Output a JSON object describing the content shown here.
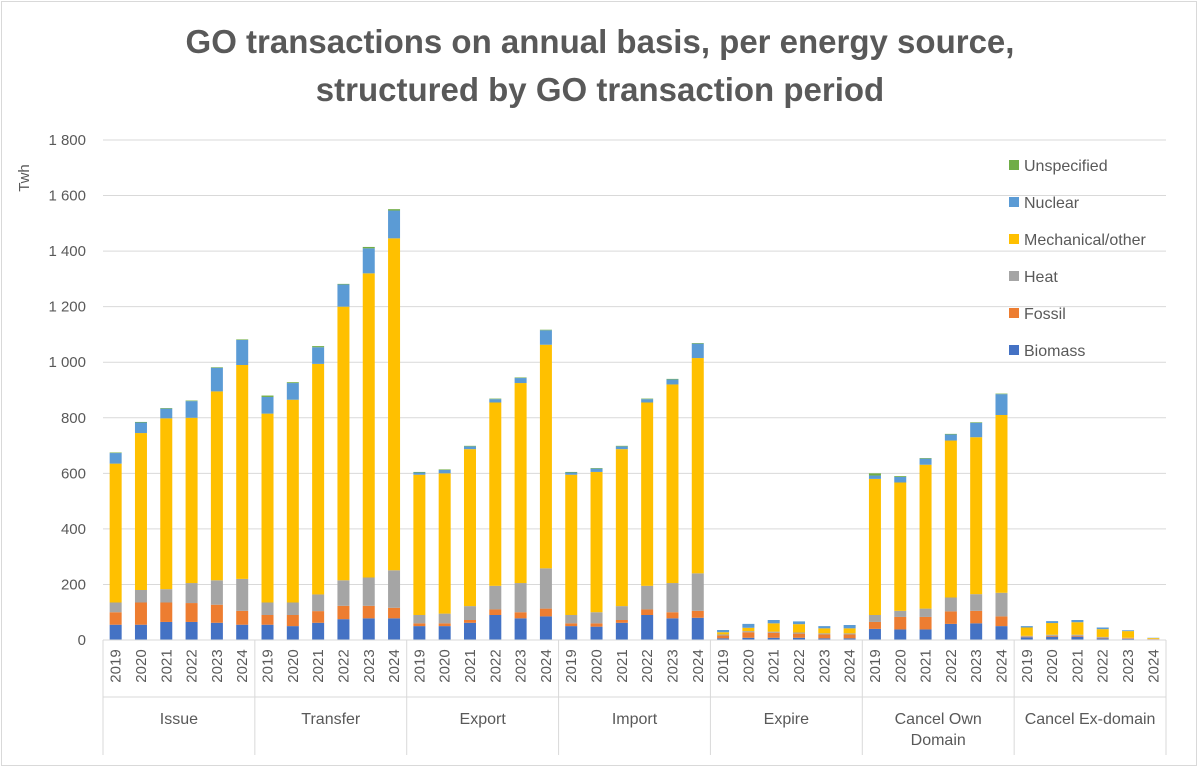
{
  "chart_data": {
    "type": "bar",
    "stacked": true,
    "title": [
      "GO transactions on annual basis, per energy source,",
      "structured by GO transaction period"
    ],
    "ylabel": "Twh",
    "ylim": [
      0,
      1800
    ],
    "yticks": [
      0,
      200,
      400,
      600,
      800,
      1000,
      1200,
      1400,
      1600,
      1800
    ],
    "ytick_labels": [
      "0",
      "200",
      "400",
      "600",
      "800",
      "1 000",
      "1 200",
      "1 400",
      "1 600",
      "1 800"
    ],
    "grid": true,
    "legend_position": "right",
    "groups": [
      "Issue",
      "Transfer",
      "Export",
      "Import",
      "Expire",
      "Cancel Own Domain",
      "Cancel Ex-domain"
    ],
    "group_label_lines": [
      [
        "Issue"
      ],
      [
        "Transfer"
      ],
      [
        "Export"
      ],
      [
        "Import"
      ],
      [
        "Expire"
      ],
      [
        "Cancel Own",
        "Domain"
      ],
      [
        "Cancel Ex-domain"
      ]
    ],
    "years": [
      "2019",
      "2020",
      "2021",
      "2022",
      "2023",
      "2024"
    ],
    "series": [
      {
        "name": "Biomass",
        "color": "#4472C4",
        "values": [
          [
            55,
            55,
            65,
            65,
            62,
            55
          ],
          [
            55,
            50,
            62,
            75,
            78,
            78
          ],
          [
            50,
            50,
            62,
            90,
            78,
            85
          ],
          [
            50,
            48,
            62,
            90,
            78,
            80
          ],
          [
            6,
            8,
            8,
            8,
            6,
            6
          ],
          [
            40,
            38,
            38,
            58,
            60,
            50
          ],
          [
            10,
            12,
            12,
            6,
            4,
            2
          ]
        ]
      },
      {
        "name": "Fossil",
        "color": "#ED7D31",
        "values": [
          [
            45,
            80,
            70,
            68,
            65,
            50
          ],
          [
            35,
            40,
            42,
            48,
            45,
            38
          ],
          [
            10,
            10,
            10,
            20,
            22,
            28
          ],
          [
            10,
            12,
            10,
            20,
            22,
            25
          ],
          [
            10,
            20,
            18,
            15,
            14,
            14
          ],
          [
            25,
            45,
            45,
            45,
            45,
            35
          ],
          [
            2,
            3,
            3,
            2,
            2,
            1
          ]
        ]
      },
      {
        "name": "Heat",
        "color": "#A5A5A5",
        "values": [
          [
            35,
            45,
            48,
            72,
            88,
            115
          ],
          [
            45,
            45,
            60,
            92,
            102,
            135
          ],
          [
            30,
            35,
            50,
            85,
            105,
            145
          ],
          [
            30,
            40,
            50,
            85,
            105,
            135
          ],
          [
            4,
            4,
            4,
            4,
            4,
            4
          ],
          [
            25,
            22,
            30,
            50,
            60,
            85
          ],
          [
            3,
            4,
            4,
            3,
            2,
            1
          ]
        ]
      },
      {
        "name": "Mechanical/other",
        "color": "#FFC000",
        "values": [
          [
            500,
            565,
            615,
            595,
            680,
            770
          ],
          [
            680,
            730,
            830,
            985,
            1095,
            1195
          ],
          [
            505,
            505,
            565,
            660,
            720,
            805
          ],
          [
            505,
            505,
            565,
            660,
            715,
            775
          ],
          [
            8,
            12,
            30,
            30,
            18,
            18
          ],
          [
            490,
            462,
            518,
            565,
            565,
            640
          ],
          [
            30,
            42,
            45,
            28,
            24,
            3
          ]
        ]
      },
      {
        "name": "Nuclear",
        "color": "#5B9BD5",
        "values": [
          [
            38,
            38,
            35,
            60,
            85,
            90
          ],
          [
            60,
            60,
            60,
            80,
            90,
            100
          ],
          [
            8,
            12,
            10,
            12,
            18,
            52
          ],
          [
            8,
            12,
            10,
            12,
            18,
            52
          ],
          [
            8,
            14,
            12,
            10,
            8,
            12
          ],
          [
            12,
            20,
            22,
            22,
            52,
            75
          ],
          [
            5,
            7,
            8,
            6,
            3,
            1
          ]
        ]
      },
      {
        "name": "Unspecified",
        "color": "#70AD47",
        "values": [
          [
            2,
            2,
            2,
            2,
            2,
            2
          ],
          [
            5,
            3,
            4,
            2,
            5,
            5
          ],
          [
            2,
            2,
            2,
            2,
            2,
            2
          ],
          [
            2,
            2,
            2,
            2,
            2,
            2
          ],
          [
            0,
            0,
            0,
            0,
            0,
            0
          ],
          [
            8,
            3,
            2,
            2,
            2,
            2
          ],
          [
            0,
            0,
            0,
            0,
            0,
            0
          ]
        ]
      }
    ]
  }
}
